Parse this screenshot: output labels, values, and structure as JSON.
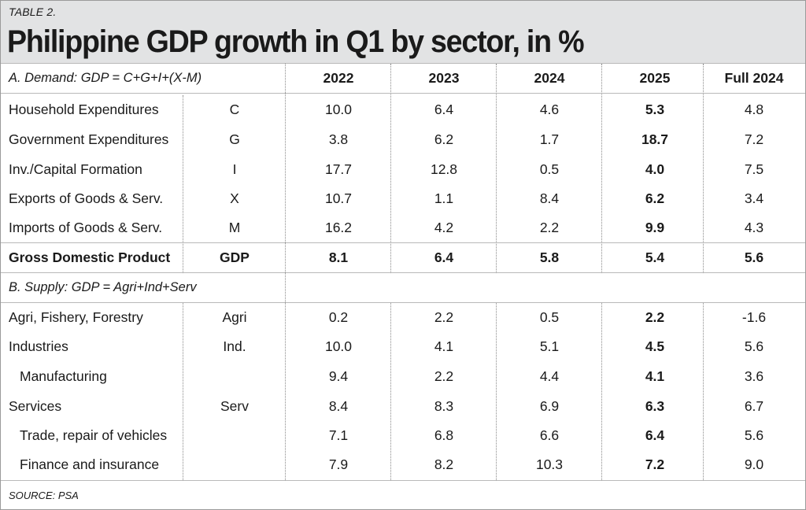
{
  "table_label": "TABLE 2.",
  "title": "Philippine GDP growth in Q1 by sector, in %",
  "columns": [
    "2022",
    "2023",
    "2024",
    "2025",
    "Full 2024"
  ],
  "section_a": "A. Demand: GDP = C+G+I+(X-M)",
  "demand_rows": [
    {
      "label": "Household Expenditures",
      "code": "C",
      "values": [
        "10.0",
        "6.4",
        "4.6",
        "5.3",
        "4.8"
      ]
    },
    {
      "label": "Government Expenditures",
      "code": "G",
      "values": [
        "3.8",
        "6.2",
        "1.7",
        "18.7",
        "7.2"
      ]
    },
    {
      "label": "Inv./Capital Formation",
      "code": "I",
      "values": [
        "17.7",
        "12.8",
        "0.5",
        "4.0",
        "7.5"
      ]
    },
    {
      "label": "Exports of Goods & Serv.",
      "code": "X",
      "values": [
        "10.7",
        "1.1",
        "8.4",
        "6.2",
        "3.4"
      ]
    },
    {
      "label": "Imports of Goods & Serv.",
      "code": "M",
      "values": [
        "16.2",
        "4.2",
        "2.2",
        "9.9",
        "4.3"
      ]
    }
  ],
  "gdp_row": {
    "label": "Gross Domestic Product",
    "code": "GDP",
    "values": [
      "8.1",
      "6.4",
      "5.8",
      "5.4",
      "5.6"
    ]
  },
  "section_b": "B. Supply: GDP = Agri+Ind+Serv",
  "supply_rows": [
    {
      "label": "Agri, Fishery, Forestry",
      "code": "Agri",
      "values": [
        "0.2",
        "2.2",
        "0.5",
        "2.2",
        "-1.6"
      ]
    },
    {
      "label": "Industries",
      "code": "Ind.",
      "values": [
        "10.0",
        "4.1",
        "5.1",
        "4.5",
        "5.6"
      ]
    },
    {
      "label": "Manufacturing",
      "code": "",
      "values": [
        "9.4",
        "2.2",
        "4.4",
        "4.1",
        "3.6"
      ]
    },
    {
      "label": "Services",
      "code": "Serv",
      "values": [
        "8.4",
        "8.3",
        "6.9",
        "6.3",
        "6.7"
      ]
    },
    {
      "label": "Trade, repair of vehicles",
      "code": "",
      "values": [
        "7.1",
        "6.8",
        "6.6",
        "6.4",
        "5.6"
      ]
    },
    {
      "label": "Finance and insurance",
      "code": "",
      "values": [
        "7.9",
        "8.2",
        "10.3",
        "7.2",
        "9.0"
      ]
    }
  ],
  "source": "SOURCE: PSA"
}
